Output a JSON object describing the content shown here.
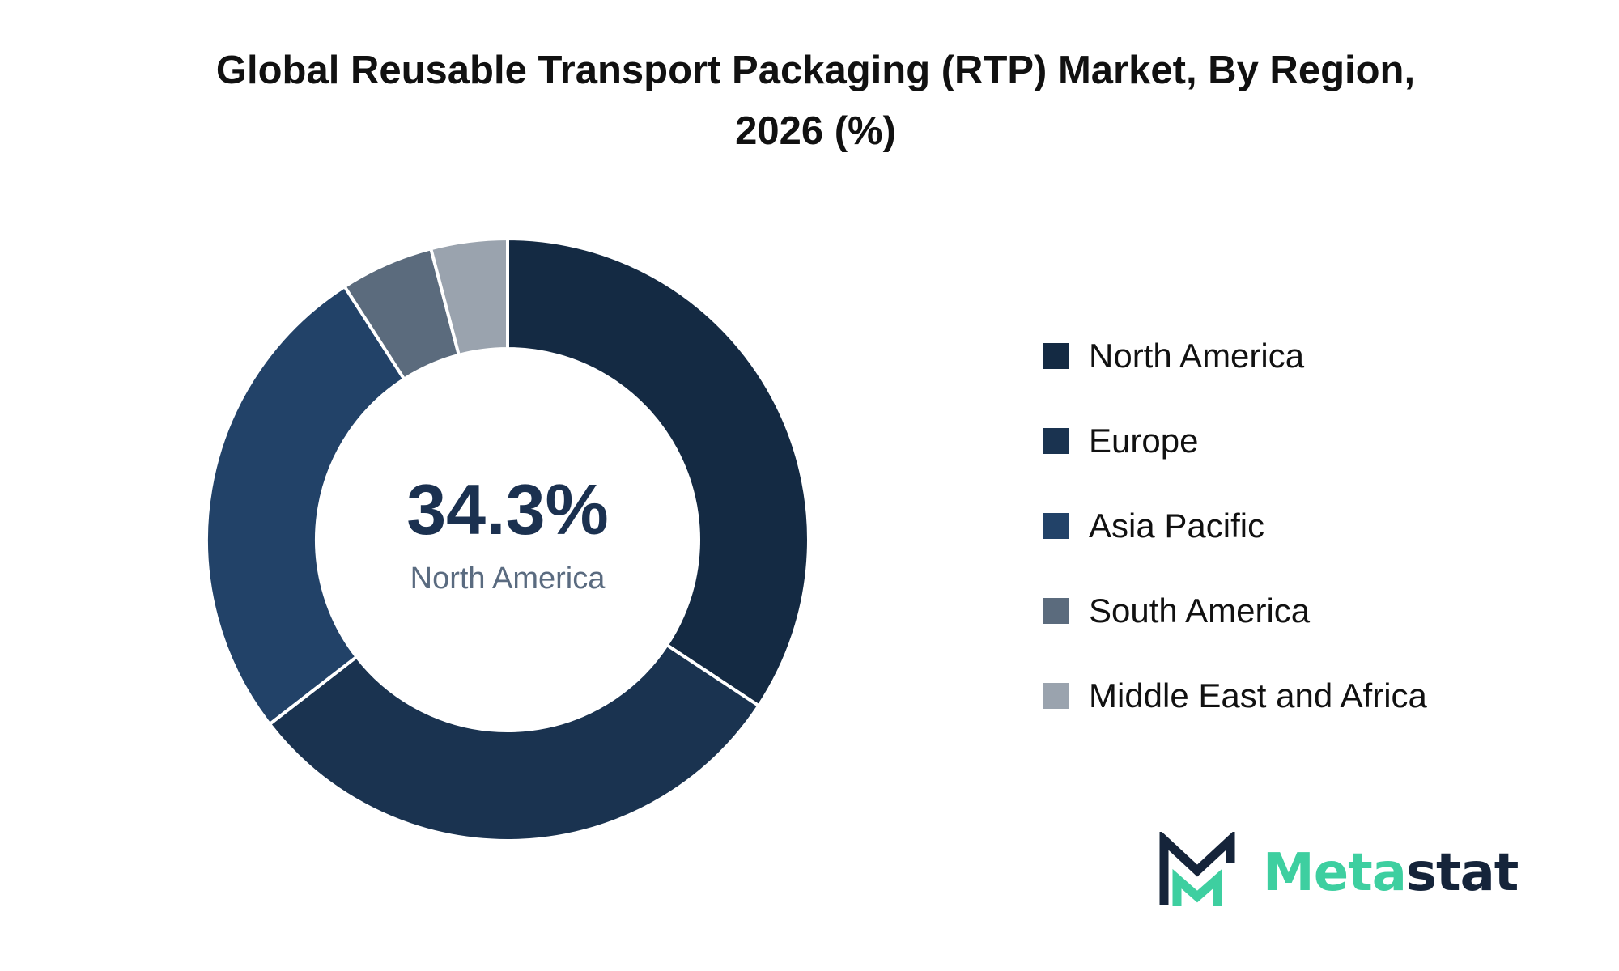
{
  "chart_data": {
    "type": "pie",
    "title_line1": "Global Reusable Transport Packaging (RTP) Market, By Region,",
    "title_line2": "2026 (%)",
    "categories": [
      "North America",
      "Europe",
      "Asia Pacific",
      "South America",
      "Middle East and Africa"
    ],
    "values": [
      34.3,
      30.2,
      26.4,
      5.0,
      4.1
    ],
    "colors": [
      "#142a43",
      "#1a3350",
      "#224268",
      "#5b6b7d",
      "#9aa3ae"
    ],
    "donut": true,
    "center_value": "34.3%",
    "center_label": "North America",
    "legend_position": "right"
  },
  "brand": {
    "name_part1": "Meta",
    "name_part2": "stat",
    "accent_color": "#3ecfa0",
    "dark_color": "#15243a"
  }
}
